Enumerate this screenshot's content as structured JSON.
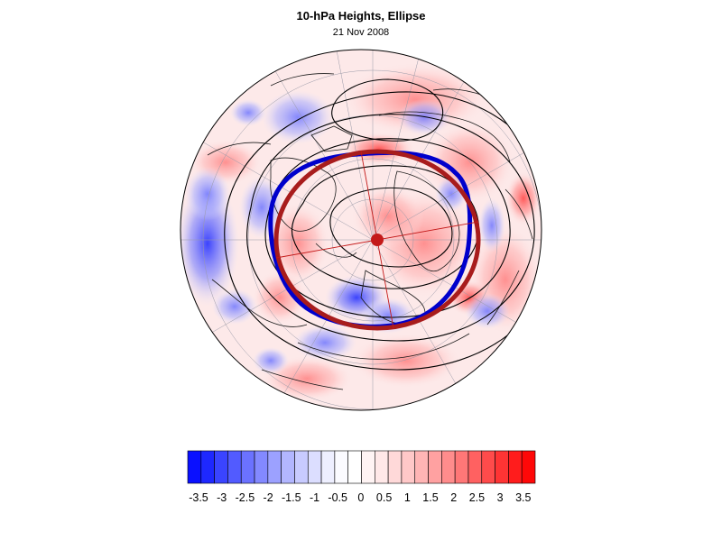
{
  "figure": {
    "title": "10-hPa Heights, Ellipse",
    "subtitle": "21 Nov 2008"
  },
  "map": {
    "projection": "polar stereographic",
    "hemisphere": "northern",
    "field": "10-hPa height anomaly",
    "contours": "black height contours",
    "vortex_edge_color": "#0000cc",
    "ellipse_color": "#b01c1c",
    "ellipse_center_color": "#c41a1a"
  },
  "colorbar": {
    "labels": [
      "-3.5",
      "-3",
      "-2.5",
      "-2",
      "-1.5",
      "-1",
      "-0.5",
      "0",
      "0.5",
      "1",
      "1.5",
      "2",
      "2.5",
      "3",
      "3.5"
    ],
    "colors": [
      "#0a10ff",
      "#1e28ff",
      "#3a44ff",
      "#525bff",
      "#6b72ff",
      "#8389ff",
      "#9ca1ff",
      "#b2b6ff",
      "#c8cbff",
      "#dcdeff",
      "#eeefff",
      "#fbfbff",
      "#ffffff",
      "#fff4f4",
      "#ffe8e8",
      "#ffd9d9",
      "#ffc8c8",
      "#ffb5b5",
      "#ffa1a1",
      "#ff8c8c",
      "#ff7777",
      "#ff6161",
      "#ff4b4b",
      "#ff3434",
      "#ff1c1c",
      "#ff0808"
    ]
  }
}
